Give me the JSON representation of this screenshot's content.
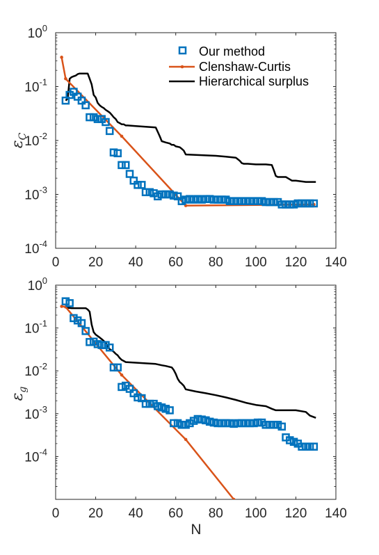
{
  "chart_data": [
    {
      "type": "line",
      "ylabel": "ε",
      "ylabel_sub": "C",
      "xlabel": "",
      "xlim": [
        0,
        140
      ],
      "ylim": [
        0.0001,
        1
      ],
      "yscale": "log",
      "grid": false,
      "legend_position": "top-right",
      "x_ticks": [
        0,
        20,
        40,
        60,
        80,
        100,
        120,
        140
      ],
      "y_tick_exponents": [
        0,
        -1,
        -2,
        -3,
        -4
      ],
      "colors": {
        "ours": "#0072BD",
        "cc": "#D95319",
        "hs": "#000000"
      },
      "series": [
        {
          "name": "Our method",
          "marker": "square",
          "x": [
            5,
            7,
            9,
            11,
            13,
            15,
            17,
            19,
            21,
            23,
            25,
            27,
            29,
            31,
            33,
            35,
            37,
            39,
            41,
            43,
            45,
            47,
            49,
            51,
            53,
            55,
            57,
            59,
            61,
            63,
            65,
            67,
            69,
            71,
            73,
            75,
            77,
            79,
            81,
            83,
            85,
            87,
            89,
            91,
            93,
            95,
            97,
            99,
            101,
            103,
            105,
            107,
            109,
            111,
            113,
            115,
            117,
            119,
            121,
            123,
            125,
            127,
            129
          ],
          "y": [
            0.055,
            0.07,
            0.08,
            0.065,
            0.055,
            0.045,
            0.027,
            0.027,
            0.025,
            0.025,
            0.022,
            0.015,
            0.006,
            0.0058,
            0.0035,
            0.0035,
            0.0024,
            0.0018,
            0.0015,
            0.0015,
            0.0011,
            0.0011,
            0.00105,
            0.00092,
            0.001,
            0.001,
            0.001,
            0.00095,
            0.00092,
            0.00075,
            0.0008,
            0.00082,
            0.0008,
            0.00082,
            0.0008,
            0.00082,
            0.00082,
            0.0008,
            0.0008,
            0.0008,
            0.0008,
            0.00075,
            0.00075,
            0.00075,
            0.00075,
            0.00075,
            0.00075,
            0.00075,
            0.00075,
            0.00075,
            0.00072,
            0.00072,
            0.00072,
            0.00072,
            0.00065,
            0.00065,
            0.00065,
            0.00065,
            0.00068,
            0.00068,
            0.00068,
            0.00068,
            0.00068
          ]
        },
        {
          "name": "Clenshaw-Curtis",
          "marker": "dot",
          "x": [
            3,
            5,
            33,
            65,
            129
          ],
          "y": [
            0.35,
            0.14,
            0.012,
            0.00062,
            0.00065
          ]
        },
        {
          "name": "Hierarchical surplus",
          "marker": "none",
          "x": [
            5,
            6,
            7,
            8,
            9,
            10,
            11,
            12,
            13,
            14,
            15,
            16,
            17,
            18,
            19,
            20,
            21,
            22,
            23,
            24,
            25,
            26,
            27,
            28,
            29,
            30,
            31,
            32,
            33,
            34,
            35,
            36,
            40,
            45,
            50,
            51,
            52,
            53,
            55,
            57,
            58,
            59,
            60,
            62,
            63,
            64,
            65,
            70,
            75,
            80,
            85,
            90,
            91,
            92,
            93,
            94,
            95,
            96,
            100,
            105,
            108,
            109,
            110,
            111,
            113,
            115,
            116,
            117,
            118,
            120,
            125,
            130
          ],
          "y": [
            0.055,
            0.06,
            0.14,
            0.15,
            0.155,
            0.16,
            0.17,
            0.175,
            0.175,
            0.175,
            0.175,
            0.175,
            0.14,
            0.11,
            0.07,
            0.063,
            0.05,
            0.045,
            0.042,
            0.04,
            0.037,
            0.035,
            0.033,
            0.03,
            0.027,
            0.025,
            0.022,
            0.021,
            0.02,
            0.02,
            0.019,
            0.019,
            0.0185,
            0.018,
            0.0175,
            0.0145,
            0.012,
            0.0097,
            0.0092,
            0.0088,
            0.0083,
            0.0083,
            0.0078,
            0.0075,
            0.007,
            0.0065,
            0.0055,
            0.0054,
            0.0053,
            0.0052,
            0.005,
            0.0048,
            0.0045,
            0.0042,
            0.0038,
            0.0037,
            0.0037,
            0.0037,
            0.0036,
            0.0036,
            0.0035,
            0.0028,
            0.0022,
            0.0021,
            0.0021,
            0.0021,
            0.002,
            0.0019,
            0.0018,
            0.0018,
            0.0017,
            0.0017
          ]
        }
      ]
    },
    {
      "type": "line",
      "ylabel": "ε",
      "ylabel_sub": "g",
      "xlabel": "N",
      "xlim": [
        0,
        140
      ],
      "ylim": [
        1e-05,
        1
      ],
      "yscale": "log",
      "grid": false,
      "x_ticks": [
        0,
        20,
        40,
        60,
        80,
        100,
        120,
        140
      ],
      "y_tick_exponents": [
        0,
        -1,
        -2,
        -3,
        -4
      ],
      "colors": {
        "ours": "#0072BD",
        "cc": "#D95319",
        "hs": "#000000"
      },
      "series": [
        {
          "name": "Our method",
          "marker": "square",
          "x": [
            5,
            7,
            9,
            11,
            13,
            15,
            17,
            19,
            21,
            23,
            25,
            27,
            29,
            31,
            33,
            35,
            37,
            39,
            41,
            43,
            45,
            47,
            49,
            51,
            53,
            55,
            57,
            59,
            61,
            63,
            65,
            67,
            69,
            71,
            73,
            75,
            77,
            79,
            81,
            83,
            85,
            87,
            89,
            91,
            93,
            95,
            97,
            99,
            101,
            103,
            105,
            107,
            109,
            111,
            113,
            115,
            117,
            119,
            121,
            123,
            125,
            127,
            129
          ],
          "y": [
            0.42,
            0.38,
            0.17,
            0.15,
            0.13,
            0.085,
            0.047,
            0.048,
            0.042,
            0.04,
            0.04,
            0.035,
            0.012,
            0.012,
            0.0042,
            0.0045,
            0.0038,
            0.003,
            0.0024,
            0.0023,
            0.0017,
            0.0017,
            0.0017,
            0.0015,
            0.0014,
            0.0013,
            0.0012,
            0.0006,
            0.0006,
            0.00055,
            0.00055,
            0.0006,
            0.00068,
            0.00075,
            0.00073,
            0.0007,
            0.00065,
            0.00062,
            0.0006,
            0.0006,
            0.0006,
            0.0006,
            0.00058,
            0.0006,
            0.0006,
            0.0006,
            0.0006,
            0.0006,
            0.00062,
            0.00062,
            0.00055,
            0.00055,
            0.00055,
            0.00055,
            0.0005,
            0.00028,
            0.00024,
            0.00022,
            0.0002,
            0.00017,
            0.00017,
            0.00017,
            0.00017
          ]
        },
        {
          "name": "Clenshaw-Curtis",
          "marker": "dot",
          "x": [
            3,
            5,
            33,
            65,
            89
          ],
          "y": [
            0.32,
            0.31,
            0.008,
            0.00025,
            1e-05
          ]
        },
        {
          "name": "Hierarchical surplus",
          "marker": "none",
          "x": [
            5,
            8,
            10,
            12,
            14,
            15,
            16,
            17,
            18,
            19,
            20,
            21,
            22,
            23,
            24,
            25,
            26,
            27,
            28,
            29,
            30,
            31,
            32,
            33,
            34,
            35,
            40,
            45,
            50,
            53,
            55,
            58,
            59,
            60,
            61,
            62,
            63,
            64,
            65,
            70,
            75,
            80,
            85,
            90,
            95,
            100,
            105,
            108,
            110,
            111,
            113,
            115,
            120,
            125,
            127,
            130
          ],
          "y": [
            0.3,
            0.29,
            0.29,
            0.29,
            0.29,
            0.29,
            0.27,
            0.24,
            0.12,
            0.08,
            0.07,
            0.065,
            0.06,
            0.055,
            0.05,
            0.045,
            0.038,
            0.032,
            0.03,
            0.028,
            0.025,
            0.023,
            0.02,
            0.018,
            0.017,
            0.016,
            0.0155,
            0.015,
            0.0145,
            0.0135,
            0.013,
            0.012,
            0.0105,
            0.0085,
            0.0065,
            0.0055,
            0.005,
            0.0045,
            0.0037,
            0.0033,
            0.003,
            0.0027,
            0.0024,
            0.0021,
            0.0018,
            0.0016,
            0.0015,
            0.0013,
            0.0012,
            0.0012,
            0.0012,
            0.0012,
            0.0012,
            0.0011,
            0.0009,
            0.0008
          ]
        }
      ]
    }
  ],
  "legend": {
    "items": [
      {
        "label": "Our method",
        "marker": "square",
        "color": "#0072BD"
      },
      {
        "label": "Clenshaw-Curtis",
        "marker": "dot-line",
        "color": "#D95319"
      },
      {
        "label": "Hierarchical surplus",
        "marker": "line",
        "color": "#000000"
      }
    ]
  }
}
